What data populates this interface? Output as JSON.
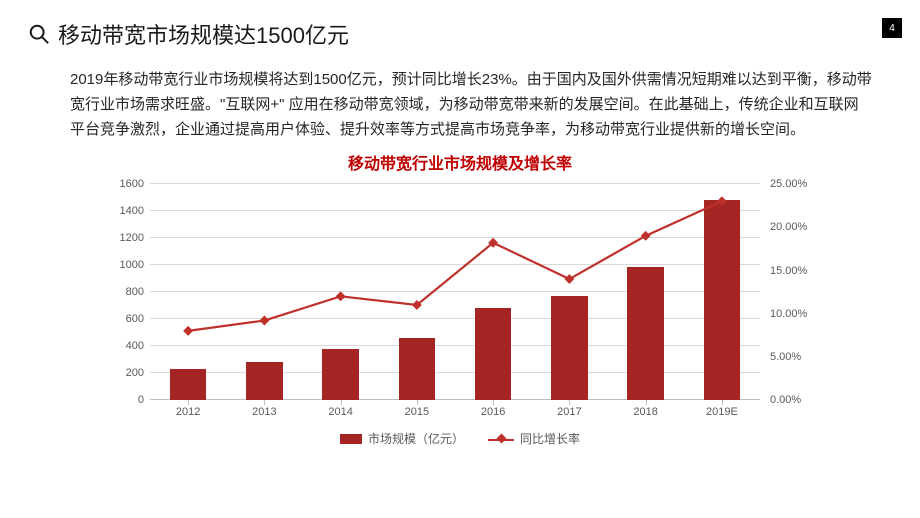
{
  "page_number": "4",
  "title": "移动带宽市场规模达1500亿元",
  "body_text": "2019年移动带宽行业市场规模将达到1500亿元，预计同比增长23%。由于国内及国外供需情况短期难以达到平衡，移动带宽行业市场需求旺盛。\"互联网+\" 应用在移动带宽领域，为移动带宽带来新的发展空间。在此基础上，传统企业和互联网平台竞争激烈，企业通过提高用户体验、提升效率等方式提高市场竞争率，为移动带宽行业提供新的增长空间。",
  "chart": {
    "type": "bar+line",
    "title": "移动带宽行业市场规模及增长率",
    "title_color": "#c00000",
    "categories": [
      "2012",
      "2013",
      "2014",
      "2015",
      "2016",
      "2017",
      "2018",
      "2019E"
    ],
    "bar_series": {
      "name": "市场规模（亿元）",
      "values": [
        230,
        280,
        380,
        460,
        680,
        770,
        990,
        1480
      ],
      "color": "#a52525"
    },
    "line_series": {
      "name": "同比增长率",
      "values": [
        8.0,
        9.2,
        12.0,
        11.0,
        18.2,
        14.0,
        19.0,
        23.0
      ],
      "color": "#c0302b",
      "marker_shape": "diamond",
      "marker_size": 7,
      "line_width": 2.2
    },
    "y_left": {
      "min": 0,
      "max": 1600,
      "step": 200,
      "labels": [
        "0",
        "200",
        "400",
        "600",
        "800",
        "1000",
        "1200",
        "1400",
        "1600"
      ]
    },
    "y_right": {
      "min": 0,
      "max": 25,
      "step": 5,
      "labels": [
        "0.00%",
        "5.00%",
        "10.00%",
        "15.00%",
        "20.00%",
        "25.00%"
      ]
    },
    "grid_color": "#d9d9d9",
    "axis_color": "#bfbfbf",
    "tick_font_size": 11,
    "bar_width_ratio": 0.48,
    "background_color": "#ffffff",
    "legend": {
      "bar_label": "市场规模（亿元）",
      "line_label": "同比增长率"
    }
  }
}
